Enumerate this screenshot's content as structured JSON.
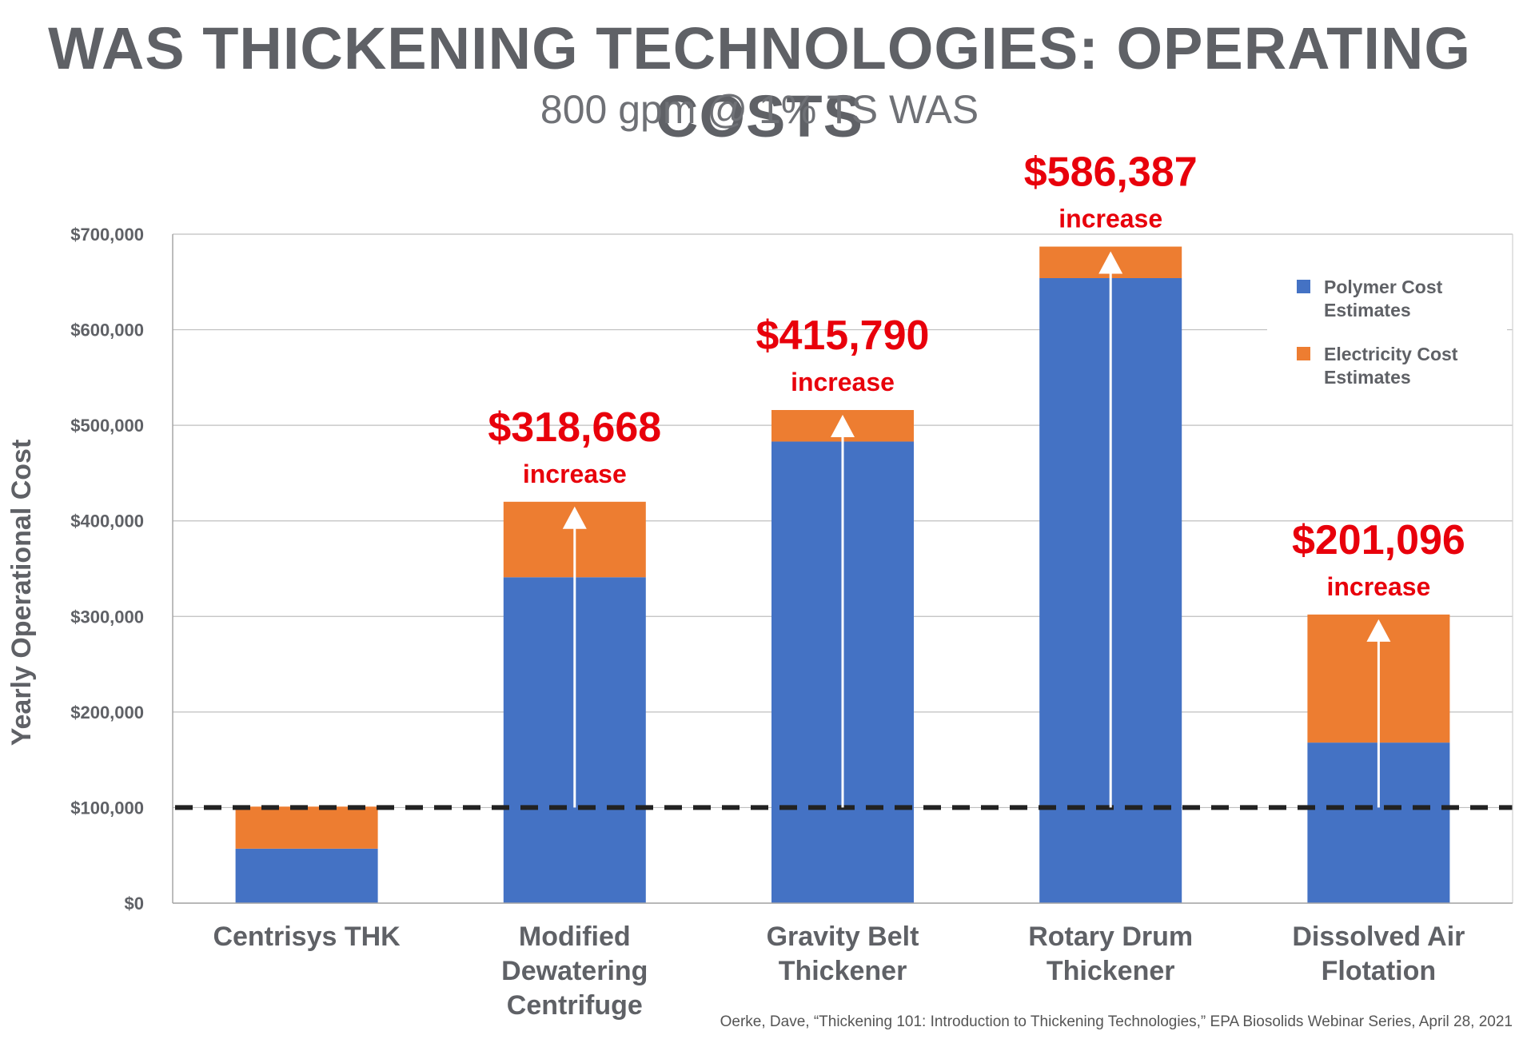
{
  "title": "WAS THICKENING TECHNOLOGIES: OPERATING COSTS",
  "subtitle": "800 gpm @ 1% TS WAS",
  "source": "Oerke, Dave, “Thickening 101: Introduction to Thickening Technologies,” EPA Biosolids Webinar Series, April 28, 2021",
  "colors": {
    "polymer": "#4472c4",
    "electricity": "#ed7d31",
    "annotation": "#e8000b",
    "axis_text": "#5f6166",
    "grid": "#bfbfbf",
    "reference_line": "#222222"
  },
  "chart_data": {
    "type": "bar",
    "stacked": true,
    "categories": [
      [
        "Centrisys THK"
      ],
      [
        "Modified",
        "Dewatering",
        "Centrifuge"
      ],
      [
        "Gravity Belt",
        "Thickener"
      ],
      [
        "Rotary Drum",
        "Thickener"
      ],
      [
        "Dissolved Air",
        "Flotation"
      ]
    ],
    "series": [
      {
        "name": "Polymer Cost Estimates",
        "legend_lines": [
          "Polymer Cost",
          "Estimates"
        ],
        "color": "#4472c4",
        "values": [
          57000,
          341000,
          483000,
          654000,
          168000
        ]
      },
      {
        "name": "Electricity Cost Estimates",
        "legend_lines": [
          "Electricity Cost",
          "Estimates"
        ],
        "color": "#ed7d31",
        "values": [
          44000,
          79000,
          33000,
          33000,
          134000
        ]
      }
    ],
    "ylabel": "Yearly Operational Cost",
    "xlabel": "",
    "ylim": [
      0,
      700000
    ],
    "yticks": [
      0,
      100000,
      200000,
      300000,
      400000,
      500000,
      600000,
      700000
    ],
    "ytick_labels": [
      "$0",
      "$100,000",
      "$200,000",
      "$300,000",
      "$400,000",
      "$500,000",
      "$600,000",
      "$700,000"
    ],
    "reference_line": {
      "value": 100000,
      "style": "dashed"
    },
    "annotations": [
      {
        "category_index": 1,
        "amount": "$318,668",
        "text": "increase"
      },
      {
        "category_index": 2,
        "amount": "$415,790",
        "text": "increase"
      },
      {
        "category_index": 3,
        "amount": "$586,387",
        "text": "increase"
      },
      {
        "category_index": 4,
        "amount": "$201,096",
        "text": "increase"
      }
    ],
    "grid": true,
    "legend_position": "top-right"
  }
}
